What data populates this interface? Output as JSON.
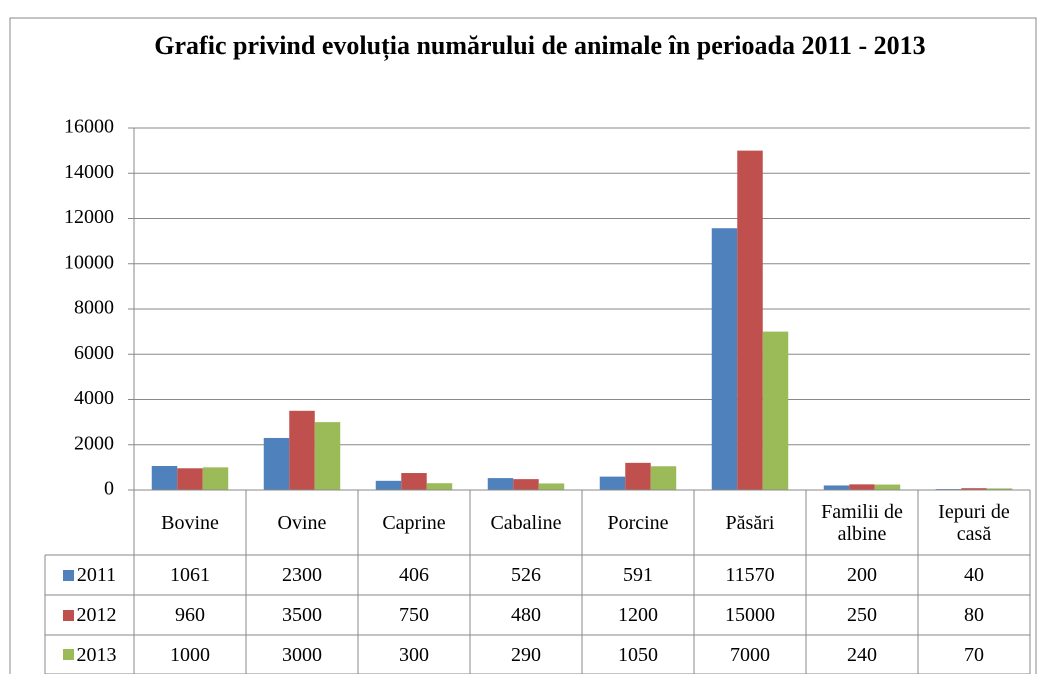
{
  "chart_data": {
    "type": "bar",
    "title": "Grafic privind evoluția numărului de animale în perioada 2011 - 2013",
    "categories": [
      "Bovine",
      "Ovine",
      "Caprine",
      "Cabaline",
      "Porcine",
      "Păsări",
      "Familii de albine",
      "Iepuri de casă"
    ],
    "series": [
      {
        "name": "2011",
        "color": "#4f81bd",
        "values": [
          1061,
          2300,
          406,
          526,
          591,
          11570,
          200,
          40
        ]
      },
      {
        "name": "2012",
        "color": "#c0504d",
        "values": [
          960,
          3500,
          750,
          480,
          1200,
          15000,
          250,
          80
        ]
      },
      {
        "name": "2013",
        "color": "#9bbb59",
        "values": [
          1000,
          3000,
          300,
          290,
          1050,
          7000,
          240,
          70
        ]
      }
    ],
    "ylim": [
      0,
      16000
    ],
    "yticks": [
      0,
      2000,
      4000,
      6000,
      8000,
      10000,
      12000,
      14000,
      16000
    ],
    "grid": true
  }
}
